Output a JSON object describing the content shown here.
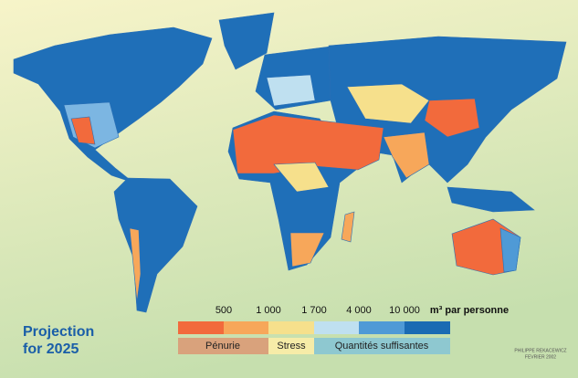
{
  "title": {
    "line1": "Projection",
    "line2": "for 2025"
  },
  "legend": {
    "thresholds": [
      "500",
      "1 000",
      "1 700",
      "4 000",
      "10 000"
    ],
    "unit": "m³ par personne",
    "groups": [
      "Pénurie",
      "Stress",
      "Quantités suffisantes"
    ]
  },
  "credit": {
    "author": "PHILIPPE REKACEWICZ",
    "date": "FEVRIER 2002"
  }
}
